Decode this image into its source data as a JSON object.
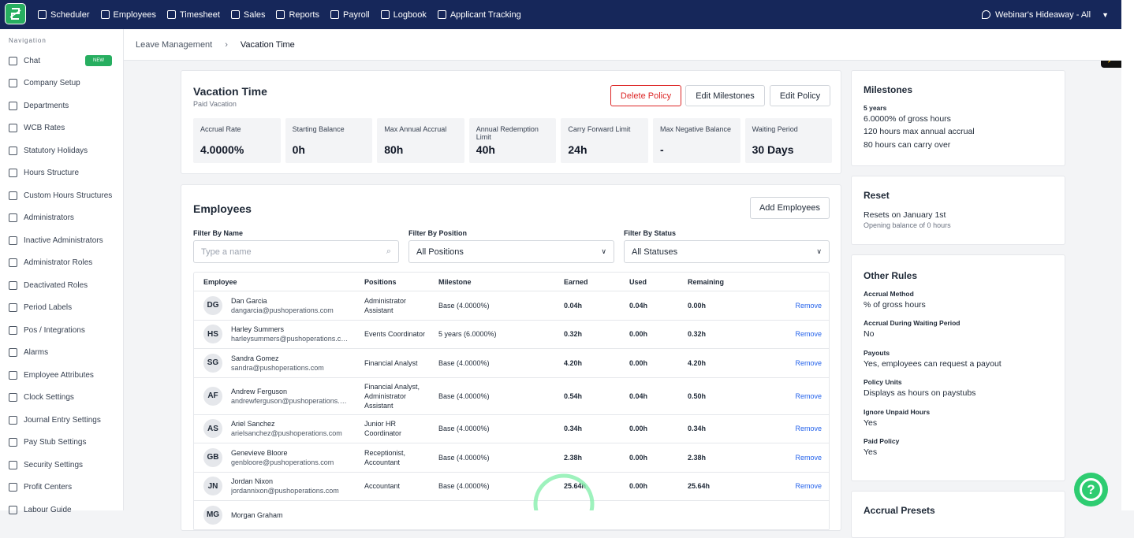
{
  "nav": {
    "items": [
      "Scheduler",
      "Employees",
      "Timesheet",
      "Sales",
      "Reports",
      "Payroll",
      "Logbook",
      "Applicant Tracking"
    ],
    "location": "Webinar's Hideaway - All"
  },
  "sidebar": {
    "heading": "Navigation",
    "items": [
      {
        "label": "Chat",
        "badge": "NEW"
      },
      {
        "label": "Company Setup"
      },
      {
        "label": "Departments"
      },
      {
        "label": "WCB Rates"
      },
      {
        "label": "Statutory Holidays"
      },
      {
        "label": "Hours Structure"
      },
      {
        "label": "Custom Hours Structures"
      },
      {
        "label": "Administrators"
      },
      {
        "label": "Inactive Administrators"
      },
      {
        "label": "Administrator Roles"
      },
      {
        "label": "Deactivated Roles"
      },
      {
        "label": "Period Labels"
      },
      {
        "label": "Pos / Integrations"
      },
      {
        "label": "Alarms"
      },
      {
        "label": "Employee Attributes"
      },
      {
        "label": "Clock Settings"
      },
      {
        "label": "Journal Entry Settings"
      },
      {
        "label": "Pay Stub Settings"
      },
      {
        "label": "Security Settings"
      },
      {
        "label": "Profit Centers"
      },
      {
        "label": "Labour Guide"
      }
    ]
  },
  "breadcrumb": [
    "Leave Management",
    "Vacation Time"
  ],
  "policy": {
    "title": "Vacation Time",
    "subtitle": "Paid Vacation",
    "buttons": [
      "Delete Policy",
      "Edit Milestones",
      "Edit Policy"
    ],
    "stats": [
      {
        "label": "Accrual Rate",
        "value": "4.0000%"
      },
      {
        "label": "Starting Balance",
        "value": "0h"
      },
      {
        "label": "Max Annual Accrual",
        "value": "80h"
      },
      {
        "label": "Annual Redemption Limit",
        "value": "40h"
      },
      {
        "label": "Carry Forward Limit",
        "value": "24h"
      },
      {
        "label": "Max Negative Balance",
        "value": "-"
      },
      {
        "label": "Waiting Period",
        "value": "30 Days"
      }
    ]
  },
  "employees": {
    "title": "Employees",
    "add_button": "Add Employees",
    "filters": [
      {
        "label": "Filter By Name",
        "placeholder": "Type a name"
      },
      {
        "label": "Filter By Position",
        "placeholder": "All Positions"
      },
      {
        "label": "Filter By Status",
        "placeholder": "All Statuses"
      }
    ],
    "columns": [
      "Employee",
      "Positions",
      "Milestone",
      "Earned",
      "Used",
      "Remaining"
    ],
    "rows": [
      {
        "initials": "DG",
        "name": "Dan Garcia",
        "email": "dangarcia@pushoperations.com",
        "positions": "Administrator Assistant",
        "milestone": "Base (4.0000%)",
        "earned": "0.04h",
        "used": "0.04h",
        "remaining": "0.00h",
        "action": "Remove"
      },
      {
        "initials": "HS",
        "name": "Harley Summers",
        "email": "harleysummers@pushoperations.com",
        "positions": "Events Coordinator",
        "milestone": "5 years (6.0000%)",
        "earned": "0.32h",
        "used": "0.00h",
        "remaining": "0.32h",
        "action": "Remove"
      },
      {
        "initials": "SG",
        "name": "Sandra Gomez",
        "email": "sandra@pushoperations.com",
        "positions": "Financial Analyst",
        "milestone": "Base (4.0000%)",
        "earned": "4.20h",
        "used": "0.00h",
        "remaining": "4.20h",
        "action": "Remove"
      },
      {
        "initials": "AF",
        "name": "Andrew Ferguson",
        "email": "andrewferguson@pushoperations.com",
        "positions": "Financial Analyst, Administrator Assistant",
        "milestone": "Base (4.0000%)",
        "earned": "0.54h",
        "used": "0.04h",
        "remaining": "0.50h",
        "action": "Remove"
      },
      {
        "initials": "AS",
        "name": "Ariel Sanchez",
        "email": "arielsanchez@pushoperations.com",
        "positions": "Junior HR Coordinator",
        "milestone": "Base (4.0000%)",
        "earned": "0.34h",
        "used": "0.00h",
        "remaining": "0.34h",
        "action": "Remove"
      },
      {
        "initials": "GB",
        "name": "Genevieve Bloore",
        "email": "genbloore@pushoperations.com",
        "positions": "Receptionist, Accountant",
        "milestone": "Base (4.0000%)",
        "earned": "2.38h",
        "used": "0.00h",
        "remaining": "2.38h",
        "action": "Remove"
      },
      {
        "initials": "JN",
        "name": "Jordan Nixon",
        "email": "jordannixon@pushoperations.com",
        "positions": "Accountant",
        "milestone": "Base (4.0000%)",
        "earned": "25.64h",
        "used": "0.00h",
        "remaining": "25.64h",
        "action": "Remove"
      },
      {
        "initials": "MG",
        "name": "Morgan Graham",
        "email": "",
        "positions": "",
        "milestone": "",
        "earned": "",
        "used": "",
        "remaining": "",
        "action": ""
      }
    ]
  },
  "milestones": {
    "title": "Milestones",
    "heading": "5 years",
    "lines": [
      "6.0000% of gross hours",
      "120 hours max annual accrual",
      "80 hours can carry over"
    ]
  },
  "reset": {
    "title": "Reset",
    "line": "Resets on January 1st",
    "note": "Opening balance of 0 hours"
  },
  "other_rules": {
    "title": "Other Rules",
    "rules": [
      {
        "label": "Accrual Method",
        "value": "% of gross hours"
      },
      {
        "label": "Accrual During Waiting Period",
        "value": "No"
      },
      {
        "label": "Payouts",
        "value": "Yes, employees can request a payout"
      },
      {
        "label": "Policy Units",
        "value": "Displays as hours on paystubs"
      },
      {
        "label": "Ignore Unpaid Hours",
        "value": "Yes"
      },
      {
        "label": "Paid Policy",
        "value": "Yes"
      }
    ]
  },
  "accrual_presets": {
    "title": "Accrual Presets"
  }
}
